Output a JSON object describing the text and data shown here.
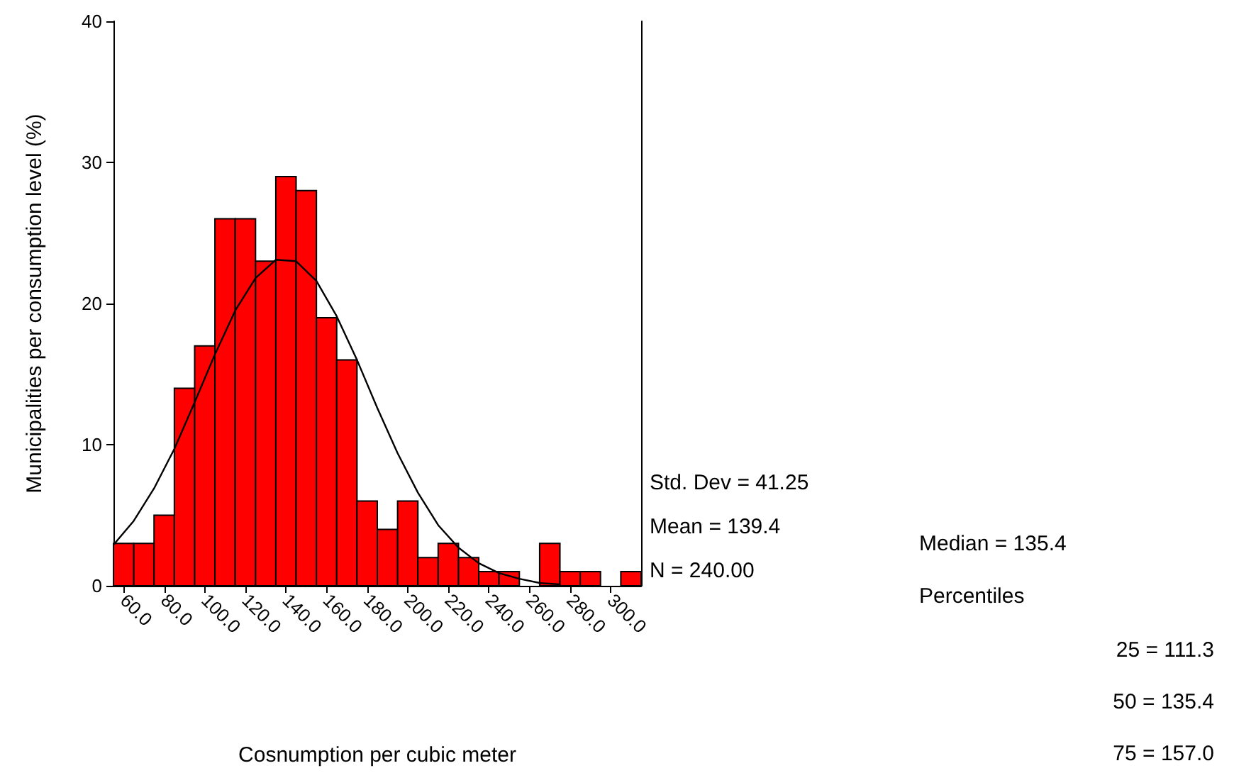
{
  "chart_data": {
    "type": "histogram",
    "xlabel": "Cosnumption per cubic meter",
    "ylabel": "Municipalities per consumption level (%)",
    "bins": [
      55,
      65,
      75,
      85,
      95,
      105,
      115,
      125,
      135,
      145,
      155,
      165,
      175,
      185,
      195,
      205,
      215,
      225,
      235,
      245,
      255,
      265,
      275,
      285,
      295,
      305,
      315
    ],
    "values": [
      3,
      3,
      5,
      14,
      17,
      26,
      26,
      23,
      29,
      28,
      19,
      16,
      6,
      4,
      6,
      2,
      3,
      2,
      1,
      1,
      0,
      3,
      1,
      1,
      0,
      1
    ],
    "color": "#ff0000",
    "series": [
      {
        "type": "line",
        "color": "#000000",
        "x": [
          55,
          65,
          75,
          85,
          95,
          105,
          115,
          125,
          135,
          145,
          155,
          165,
          175,
          185,
          195,
          205,
          215,
          225,
          235,
          245,
          255,
          265,
          275
        ],
        "values": [
          2.9,
          4.6,
          6.9,
          9.7,
          13.0,
          16.4,
          19.5,
          21.8,
          23.1,
          23.0,
          21.6,
          19.1,
          16.0,
          12.6,
          9.4,
          6.6,
          4.3,
          2.7,
          1.6,
          0.9,
          0.5,
          0.2,
          0.1
        ]
      }
    ],
    "xlim": [
      55,
      315
    ],
    "xticks": [
      {
        "value": 60,
        "label": "60.0"
      },
      {
        "value": 80,
        "label": "80.0"
      },
      {
        "value": 100,
        "label": "100.0"
      },
      {
        "value": 120,
        "label": "120.0"
      },
      {
        "value": 140,
        "label": "140.0"
      },
      {
        "value": 160,
        "label": "160.0"
      },
      {
        "value": 180,
        "label": "180.0"
      },
      {
        "value": 200,
        "label": "200.0"
      },
      {
        "value": 220,
        "label": "220.0"
      },
      {
        "value": 240,
        "label": "240.0"
      },
      {
        "value": 260,
        "label": "260.0"
      },
      {
        "value": 280,
        "label": "280.0"
      },
      {
        "value": 300,
        "label": "300.0"
      }
    ],
    "ylim": [
      0,
      40
    ],
    "yticks": [
      0,
      10,
      20,
      30,
      40
    ],
    "grid": false,
    "marker": "none",
    "line_style": "solid",
    "annotations": [
      "Std. Dev = 41.25",
      "Mean = 139.4",
      "N = 240.00",
      "Median = 135.4",
      "Percentiles",
      "25 = 111.3",
      "50 = 135.4",
      "75 = 157.0"
    ]
  }
}
